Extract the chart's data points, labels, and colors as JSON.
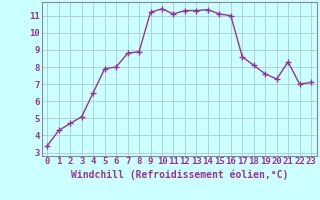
{
  "x": [
    0,
    1,
    2,
    3,
    4,
    5,
    6,
    7,
    8,
    9,
    10,
    11,
    12,
    13,
    14,
    15,
    16,
    17,
    18,
    19,
    20,
    21,
    22,
    23
  ],
  "y": [
    3.4,
    4.3,
    4.7,
    5.1,
    6.5,
    7.9,
    8.0,
    8.8,
    8.9,
    11.2,
    11.4,
    11.1,
    11.3,
    11.3,
    11.35,
    11.1,
    11.0,
    8.6,
    8.1,
    7.6,
    7.3,
    8.3,
    7.0,
    7.1
  ],
  "line_color": "#993399",
  "marker": "+",
  "markersize": 4,
  "linewidth": 1.0,
  "background_color": "#ccffff",
  "grid_color": "#aacccc",
  "xlabel": "Windchill (Refroidissement éolien,°C)",
  "xlabel_fontsize": 7,
  "tick_fontsize": 6.5,
  "ylim_min": 2.8,
  "ylim_max": 11.8,
  "xlim_min": -0.5,
  "xlim_max": 23.5,
  "yticks": [
    3,
    4,
    5,
    6,
    7,
    8,
    9,
    10,
    11
  ],
  "xticks": [
    0,
    1,
    2,
    3,
    4,
    5,
    6,
    7,
    8,
    9,
    10,
    11,
    12,
    13,
    14,
    15,
    16,
    17,
    18,
    19,
    20,
    21,
    22,
    23
  ],
  "spine_color": "#888899"
}
